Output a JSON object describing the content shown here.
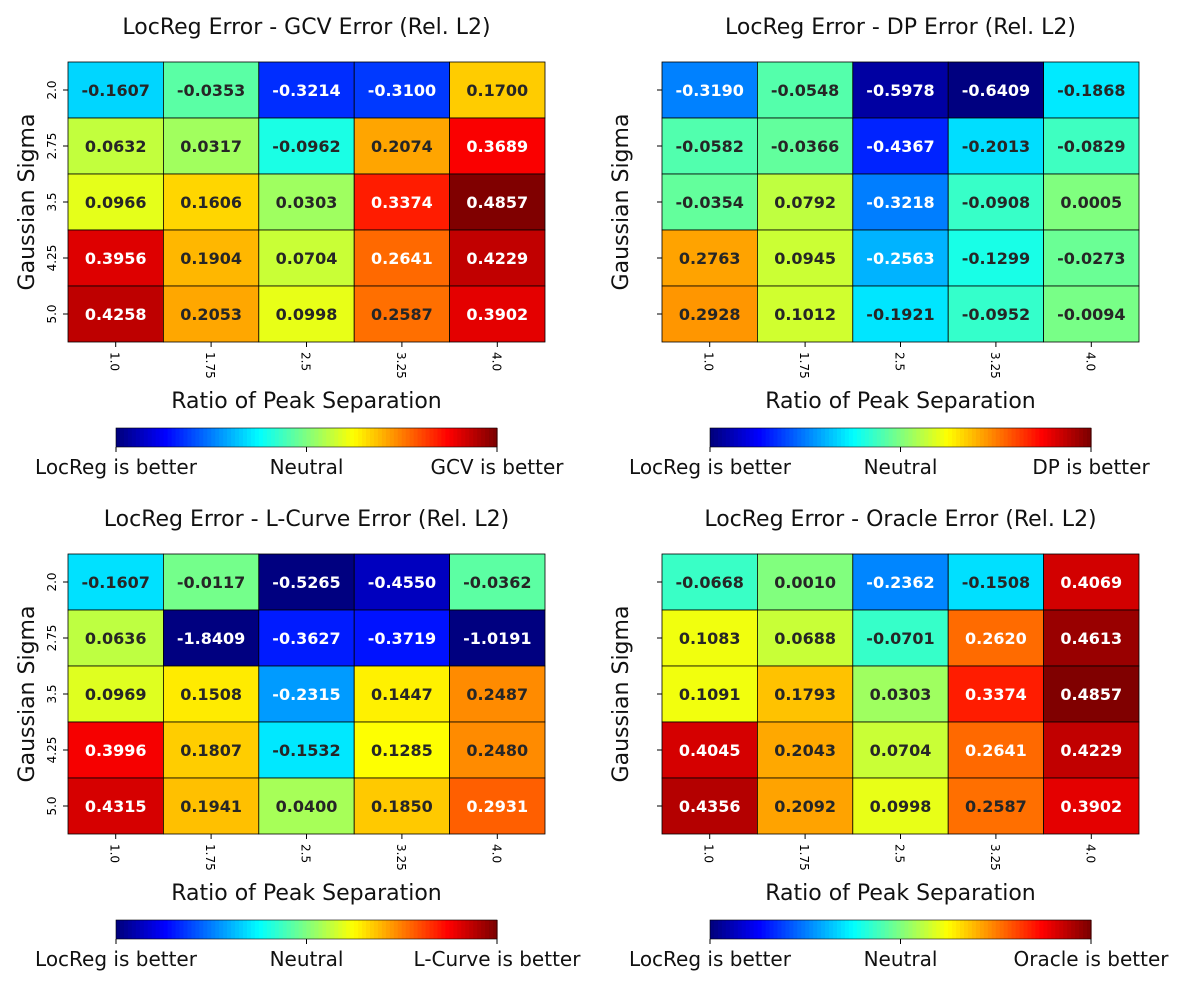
{
  "chart_data": [
    {
      "type": "heatmap",
      "title": "LocReg Error - GCV Error (Rel. L2)",
      "xlabel": "Ratio of Peak Separation",
      "ylabel": "Gaussian Sigma",
      "x_categories": [
        "1.0",
        "1.75",
        "2.5",
        "3.25",
        "4.0"
      ],
      "y_categories": [
        "2.0",
        "2.75",
        "3.5",
        "4.25",
        "5.0"
      ],
      "y_ticklabels_visible": true,
      "values": [
        [
          -0.1607,
          -0.0353,
          -0.3214,
          -0.31,
          0.17
        ],
        [
          0.0632,
          0.0317,
          -0.0962,
          0.2074,
          0.3689
        ],
        [
          0.0966,
          0.1606,
          0.0303,
          0.3374,
          0.4857
        ],
        [
          0.3956,
          0.1904,
          0.0704,
          0.2641,
          0.4229
        ],
        [
          0.4258,
          0.2053,
          0.0998,
          0.2587,
          0.3902
        ]
      ],
      "labels": [
        [
          "-0.1607",
          "-0.0353",
          "-0.3214",
          "-0.3100",
          "0.1700"
        ],
        [
          "0.0632",
          "0.0317",
          "-0.0962",
          "0.2074",
          "0.3689"
        ],
        [
          "0.0966",
          "0.1606",
          "0.0303",
          "0.3374",
          "0.4857"
        ],
        [
          "0.3956",
          "0.1904",
          "0.0704",
          "0.2641",
          "0.4229"
        ],
        [
          "0.4258",
          "0.2053",
          "0.0998",
          "0.2587",
          "0.3902"
        ]
      ],
      "colormap": "jet",
      "color_range": [
        -0.4857,
        0.4857
      ],
      "colorbar_labels": [
        "LocReg is better",
        "Neutral",
        "GCV is better"
      ]
    },
    {
      "type": "heatmap",
      "title": "LocReg Error - DP Error (Rel. L2)",
      "xlabel": "Ratio of Peak Separation",
      "ylabel": "Gaussian Sigma",
      "x_categories": [
        "1.0",
        "1.75",
        "2.5",
        "3.25",
        "4.0"
      ],
      "y_categories": [
        "2.0",
        "2.75",
        "3.5",
        "4.25",
        "5.0"
      ],
      "y_ticklabels_visible": false,
      "values": [
        [
          -0.319,
          -0.0548,
          -0.5978,
          -0.6409,
          -0.1868
        ],
        [
          -0.0582,
          -0.0366,
          -0.4367,
          -0.2013,
          -0.0829
        ],
        [
          -0.0354,
          0.0792,
          -0.3218,
          -0.0908,
          0.0005
        ],
        [
          0.2763,
          0.0945,
          -0.2563,
          -0.1299,
          -0.0273
        ],
        [
          0.2928,
          0.1012,
          -0.1921,
          -0.0952,
          -0.0094
        ]
      ],
      "labels": [
        [
          "-0.3190",
          "-0.0548",
          "-0.5978",
          "-0.6409",
          "-0.1868"
        ],
        [
          "-0.0582",
          "-0.0366",
          "-0.4367",
          "-0.2013",
          "-0.0829"
        ],
        [
          "-0.0354",
          "0.0792",
          "-0.3218",
          "-0.0908",
          "0.0005"
        ],
        [
          "0.2763",
          "0.0945",
          "-0.2563",
          "-0.1299",
          "-0.0273"
        ],
        [
          "0.2928",
          "0.1012",
          "-0.1921",
          "-0.0952",
          "-0.0094"
        ]
      ],
      "colormap": "jet",
      "color_range": [
        -0.6409,
        0.6409
      ],
      "colorbar_labels": [
        "LocReg is better",
        "Neutral",
        "DP is better"
      ]
    },
    {
      "type": "heatmap",
      "title": "LocReg Error - L-Curve Error (Rel. L2)",
      "xlabel": "Ratio of Peak Separation",
      "ylabel": "Gaussian Sigma",
      "x_categories": [
        "1.0",
        "1.75",
        "2.5",
        "3.25",
        "4.0"
      ],
      "y_categories": [
        "2.0",
        "2.75",
        "3.5",
        "4.25",
        "5.0"
      ],
      "y_ticklabels_visible": true,
      "values": [
        [
          -0.1607,
          -0.0117,
          -0.5265,
          -0.455,
          -0.0362
        ],
        [
          0.0636,
          -1.8409,
          -0.3627,
          -0.3719,
          -1.0191
        ],
        [
          0.0969,
          0.1508,
          -0.2315,
          0.1447,
          0.2487
        ],
        [
          0.3996,
          0.1807,
          -0.1532,
          0.1285,
          0.248
        ],
        [
          0.4315,
          0.1941,
          0.04,
          0.185,
          0.2931
        ]
      ],
      "labels": [
        [
          "-0.1607",
          "-0.0117",
          "-0.5265",
          "-0.4550",
          "-0.0362"
        ],
        [
          "0.0636",
          "-1.8409",
          "-0.3627",
          "-0.3719",
          "-1.0191"
        ],
        [
          "0.0969",
          "0.1508",
          "-0.2315",
          "0.1447",
          "0.2487"
        ],
        [
          "0.3996",
          "0.1807",
          "-0.1532",
          "0.1285",
          "0.2480"
        ],
        [
          "0.4315",
          "0.1941",
          "0.0400",
          "0.1850",
          "0.2931"
        ]
      ],
      "colormap": "jet",
      "color_range": [
        -0.52,
        0.52
      ],
      "colorbar_labels": [
        "LocReg is better",
        "Neutral",
        "L-Curve is better"
      ]
    },
    {
      "type": "heatmap",
      "title": "LocReg Error - Oracle Error (Rel. L2)",
      "xlabel": "Ratio of Peak Separation",
      "ylabel": "Gaussian Sigma",
      "x_categories": [
        "1.0",
        "1.75",
        "2.5",
        "3.25",
        "4.0"
      ],
      "y_categories": [
        "2.0",
        "2.75",
        "3.5",
        "4.25",
        "5.0"
      ],
      "y_ticklabels_visible": false,
      "values": [
        [
          -0.0668,
          0.001,
          -0.2362,
          -0.1508,
          0.4069
        ],
        [
          0.1083,
          0.0688,
          -0.0701,
          0.262,
          0.4613
        ],
        [
          0.1091,
          0.1793,
          0.0303,
          0.3374,
          0.4857
        ],
        [
          0.4045,
          0.2043,
          0.0704,
          0.2641,
          0.4229
        ],
        [
          0.4356,
          0.2092,
          0.0998,
          0.2587,
          0.3902
        ]
      ],
      "labels": [
        [
          "-0.0668",
          "0.0010",
          "-0.2362",
          "-0.1508",
          "0.4069"
        ],
        [
          "0.1083",
          "0.0688",
          "-0.0701",
          "0.2620",
          "0.4613"
        ],
        [
          "0.1091",
          "0.1793",
          "0.0303",
          "0.3374",
          "0.4857"
        ],
        [
          "0.4045",
          "0.2043",
          "0.0704",
          "0.2641",
          "0.4229"
        ],
        [
          "0.4356",
          "0.2092",
          "0.0998",
          "0.2587",
          "0.3902"
        ]
      ],
      "colormap": "jet",
      "color_range": [
        -0.4857,
        0.4857
      ],
      "colorbar_labels": [
        "LocReg is better",
        "Neutral",
        "Oracle is better"
      ]
    }
  ]
}
